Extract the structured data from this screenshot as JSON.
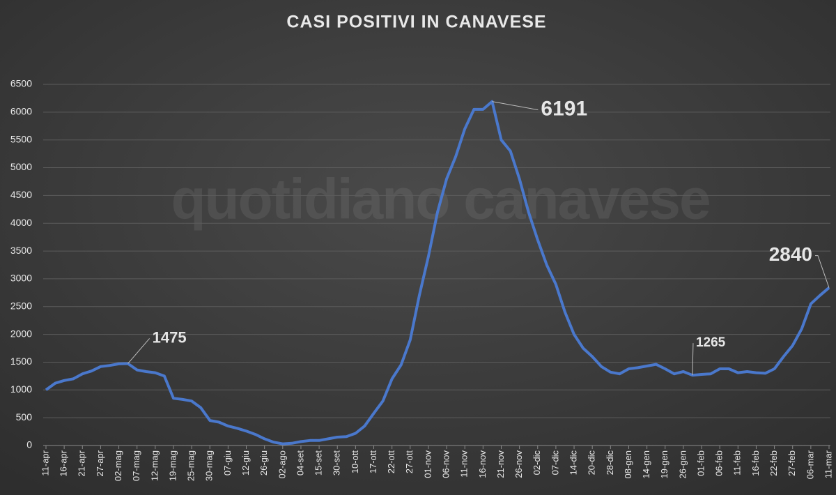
{
  "chart_data": {
    "type": "line",
    "title": "CASI POSITIVI IN CANAVESE",
    "watermark": "quotidiano canavese",
    "categories": [
      "11-apr",
      null,
      "16-apr",
      null,
      "21-apr",
      null,
      "27-apr",
      null,
      "02-mag",
      null,
      "07-mag",
      null,
      "12-mag",
      null,
      "19-mag",
      null,
      "25-mag",
      null,
      "30-mag",
      null,
      "07-giu",
      null,
      "12-giu",
      null,
      "26-giu",
      null,
      "02-ago",
      null,
      "04-set",
      null,
      "15-set",
      null,
      "30-set",
      null,
      "10-ott",
      null,
      "17-ott",
      null,
      "22-ott",
      null,
      "27-ott",
      null,
      "01-nov",
      null,
      "06-nov",
      null,
      "11-nov",
      null,
      "16-nov",
      null,
      "21-nov",
      null,
      "26-nov",
      null,
      "02-dic",
      null,
      "07-dic",
      null,
      "14-dic",
      null,
      "20-dic",
      null,
      "28-dic",
      null,
      "08-gen",
      null,
      "14-gen",
      null,
      "19-gen",
      null,
      "26-gen",
      null,
      "01-feb",
      null,
      "06-feb",
      null,
      "11-feb",
      null,
      "16-feb",
      null,
      "22-feb",
      null,
      "27-feb",
      null,
      "06-mar",
      null,
      "11-mar"
    ],
    "series": [
      {
        "name": "Casi positivi",
        "color": "#4a78cc",
        "values": [
          1000,
          1120,
          1170,
          1200,
          1290,
          1340,
          1420,
          1440,
          1470,
          1475,
          1360,
          1330,
          1310,
          1250,
          850,
          830,
          800,
          680,
          450,
          420,
          350,
          310,
          260,
          200,
          120,
          60,
          30,
          40,
          70,
          90,
          90,
          120,
          150,
          160,
          220,
          350,
          580,
          800,
          1200,
          1450,
          1900,
          2700,
          3400,
          4200,
          4800,
          5200,
          5700,
          6050,
          6050,
          6191,
          5500,
          5300,
          4800,
          4200,
          3700,
          3250,
          2900,
          2400,
          2000,
          1750,
          1600,
          1420,
          1320,
          1290,
          1380,
          1400,
          1430,
          1460,
          1380,
          1290,
          1330,
          1265,
          1280,
          1290,
          1380,
          1380,
          1310,
          1330,
          1310,
          1300,
          1380,
          1600,
          1800,
          2100,
          2550,
          2700,
          2840
        ]
      }
    ],
    "annotations": [
      1475,
      6191,
      1265,
      2840
    ],
    "ylim": [
      0,
      6500
    ],
    "yticks": [
      0,
      500,
      1000,
      1500,
      2000,
      2500,
      3000,
      3500,
      4000,
      4500,
      5000,
      5500,
      6000,
      6500
    ],
    "grid": true
  }
}
